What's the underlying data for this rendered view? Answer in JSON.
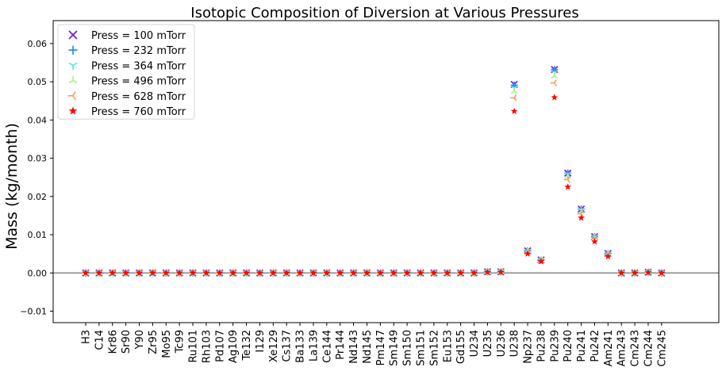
{
  "chart_data": {
    "type": "scatter",
    "title": "Isotopic Composition of Diversion at Various Pressures",
    "xlabel": "",
    "ylabel": "Mass (kg/month)",
    "ylim": [
      -0.013,
      0.066
    ],
    "yticks": [
      "−0.01",
      "0.00",
      "0.01",
      "0.02",
      "0.03",
      "0.04",
      "0.05",
      "0.06"
    ],
    "ytick_values": [
      -0.01,
      0.0,
      0.01,
      0.02,
      0.03,
      0.04,
      0.05,
      0.06
    ],
    "grid": false,
    "zero_line": true,
    "legend_position": "top-left",
    "categories": [
      "H3",
      "C14",
      "Kr86",
      "Sr90",
      "Y90",
      "Zr95",
      "Mo95",
      "Tc99",
      "Ru101",
      "Rh103",
      "Pd107",
      "Ag109",
      "Te132",
      "I129",
      "Xe129",
      "Cs137",
      "Ba133",
      "La139",
      "Ce144",
      "Pr144",
      "Nd143",
      "Nd145",
      "Pm147",
      "Sm149",
      "Sm150",
      "Sm151",
      "Sm152",
      "Eu153",
      "Gd155",
      "U234",
      "U235",
      "U236",
      "U238",
      "Np237",
      "Pu238",
      "Pu239",
      "Pu240",
      "Pu241",
      "Pu242",
      "Am241",
      "Am243",
      "Cm243",
      "Cm244",
      "Cm245"
    ],
    "series": [
      {
        "name": "Press = 100 mTorr",
        "marker": "x",
        "color": "#7b1fe0",
        "values": [
          0,
          0,
          0,
          0,
          0,
          0,
          0,
          0,
          0,
          0,
          0,
          0,
          0,
          0,
          0,
          0,
          0,
          0,
          0,
          0,
          0,
          0,
          0,
          0,
          0,
          0,
          0,
          0,
          0,
          0,
          0.0003,
          0.0003,
          0.0493,
          0.0058,
          0.0034,
          0.0532,
          0.0261,
          0.0167,
          0.0095,
          0.0051,
          0,
          0,
          0.0002,
          0
        ]
      },
      {
        "name": "Press = 232 mTorr",
        "marker": "plus",
        "color": "#2f8ff0",
        "values": [
          0,
          0,
          0,
          0,
          0,
          0,
          0,
          0,
          0,
          0,
          0,
          0,
          0,
          0,
          0,
          0,
          0,
          0,
          0,
          0,
          0,
          0,
          0,
          0,
          0,
          0,
          0,
          0,
          0,
          0,
          0.0003,
          0.0003,
          0.0491,
          0.0058,
          0.0034,
          0.0532,
          0.0261,
          0.0167,
          0.0095,
          0.0051,
          0,
          0,
          0.0002,
          0
        ]
      },
      {
        "name": "Press = 364 mTorr",
        "marker": "tri_down",
        "color": "#5de6d2",
        "values": [
          0,
          0,
          0,
          0,
          0,
          0,
          0,
          0,
          0,
          0,
          0,
          0,
          0,
          0,
          0,
          0,
          0,
          0,
          0,
          0,
          0,
          0,
          0,
          0,
          0,
          0,
          0,
          0,
          0,
          0,
          0.0003,
          0.0003,
          0.0484,
          0.0057,
          0.0034,
          0.0525,
          0.0257,
          0.0164,
          0.0094,
          0.005,
          0,
          0,
          0.0002,
          0
        ]
      },
      {
        "name": "Press = 496 mTorr",
        "marker": "tri_up",
        "color": "#a8f08a",
        "values": [
          0,
          0,
          0,
          0,
          0,
          0,
          0,
          0,
          0,
          0,
          0,
          0,
          0,
          0,
          0,
          0,
          0,
          0,
          0,
          0,
          0,
          0,
          0,
          0,
          0,
          0,
          0,
          0,
          0,
          0,
          0.0003,
          0.0003,
          0.0475,
          0.0056,
          0.0033,
          0.0515,
          0.0252,
          0.0161,
          0.0092,
          0.0049,
          0,
          0,
          0.0002,
          0
        ]
      },
      {
        "name": "Press = 628 mTorr",
        "marker": "tri_left",
        "color": "#ff9a55",
        "values": [
          0,
          0,
          0,
          0,
          0,
          0,
          0,
          0,
          0,
          0,
          0,
          0,
          0,
          0,
          0,
          0,
          0,
          0,
          0,
          0,
          0,
          0,
          0,
          0,
          0,
          0,
          0,
          0,
          0,
          0,
          0.0003,
          0.0003,
          0.0458,
          0.0054,
          0.0032,
          0.0497,
          0.0244,
          0.0155,
          0.0089,
          0.0047,
          0,
          0,
          0.0002,
          0
        ]
      },
      {
        "name": "Press = 760 mTorr",
        "marker": "star",
        "color": "#ff0000",
        "values": [
          0,
          0,
          0,
          0,
          0,
          0,
          0,
          0,
          0,
          0,
          0,
          0,
          0,
          0,
          0,
          0,
          0,
          0,
          0,
          0,
          0,
          0,
          0,
          0,
          0,
          0,
          0,
          0,
          0,
          0,
          0.0002,
          0.0002,
          0.0423,
          0.005,
          0.003,
          0.0459,
          0.0225,
          0.0144,
          0.0082,
          0.0043,
          0,
          0,
          0.0001,
          0
        ]
      }
    ]
  }
}
